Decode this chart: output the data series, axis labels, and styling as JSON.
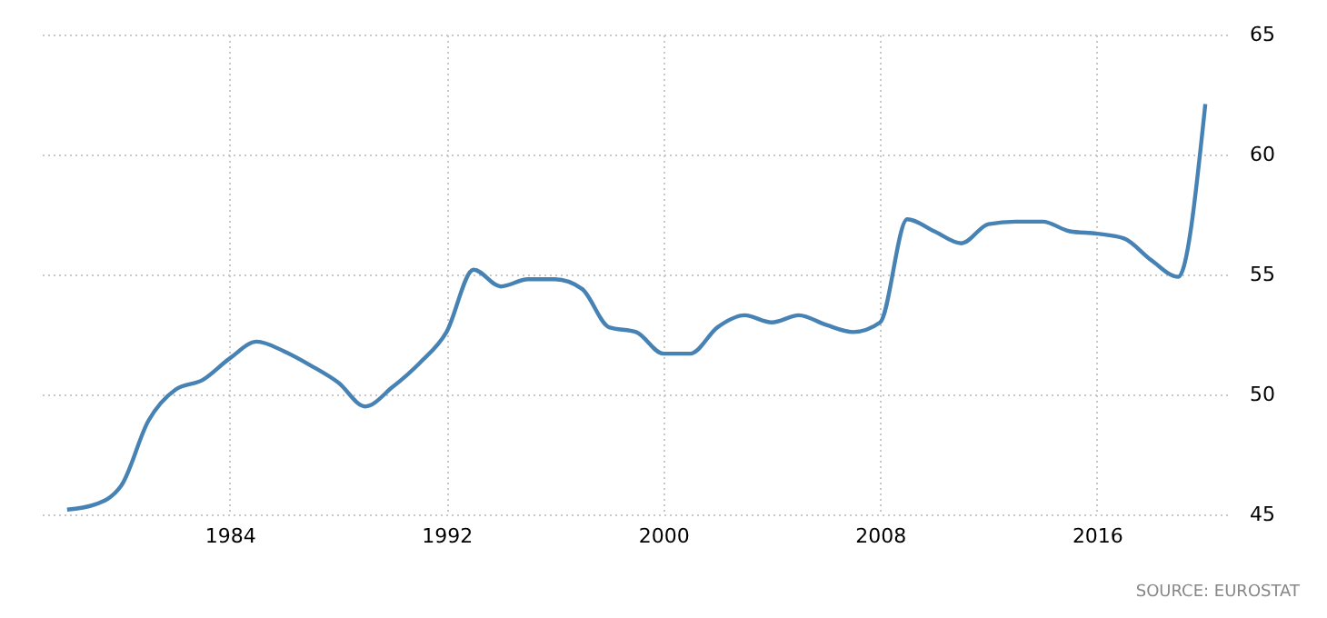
{
  "chart_data": {
    "type": "line",
    "x": [
      1978,
      1979,
      1980,
      1981,
      1982,
      1983,
      1984,
      1985,
      1986,
      1987,
      1988,
      1989,
      1990,
      1991,
      1992,
      1993,
      1994,
      1995,
      1996,
      1997,
      1998,
      1999,
      2000,
      2001,
      2002,
      2003,
      2004,
      2005,
      2006,
      2007,
      2008,
      2009,
      2010,
      2011,
      2012,
      2013,
      2014,
      2015,
      2016,
      2017,
      2018,
      2019,
      2020
    ],
    "series": [
      {
        "color": "#4682b4",
        "values": [
          45.2,
          45.4,
          46.2,
          48.9,
          50.2,
          50.6,
          51.5,
          52.2,
          51.8,
          51.2,
          50.5,
          49.5,
          50.3,
          51.3,
          52.6,
          55.2,
          54.5,
          54.8,
          54.8,
          54.4,
          52.8,
          52.6,
          51.7,
          51.7,
          52.8,
          53.3,
          53.0,
          53.3,
          52.9,
          52.6,
          53.0,
          57.3,
          56.8,
          56.3,
          57.1,
          57.2,
          57.2,
          56.8,
          56.7,
          56.5,
          55.6,
          54.9,
          62.1
        ]
      }
    ],
    "xlim": [
      1977,
      2020.8
    ],
    "xticks": [
      1984,
      1992,
      2000,
      2008,
      2016
    ],
    "ylim": [
      45,
      65
    ],
    "yticks": [
      45,
      50,
      55,
      60,
      65
    ],
    "grid": true,
    "line_style": "solid",
    "annotations": [
      "SOURCE: EUROSTAT"
    ]
  }
}
